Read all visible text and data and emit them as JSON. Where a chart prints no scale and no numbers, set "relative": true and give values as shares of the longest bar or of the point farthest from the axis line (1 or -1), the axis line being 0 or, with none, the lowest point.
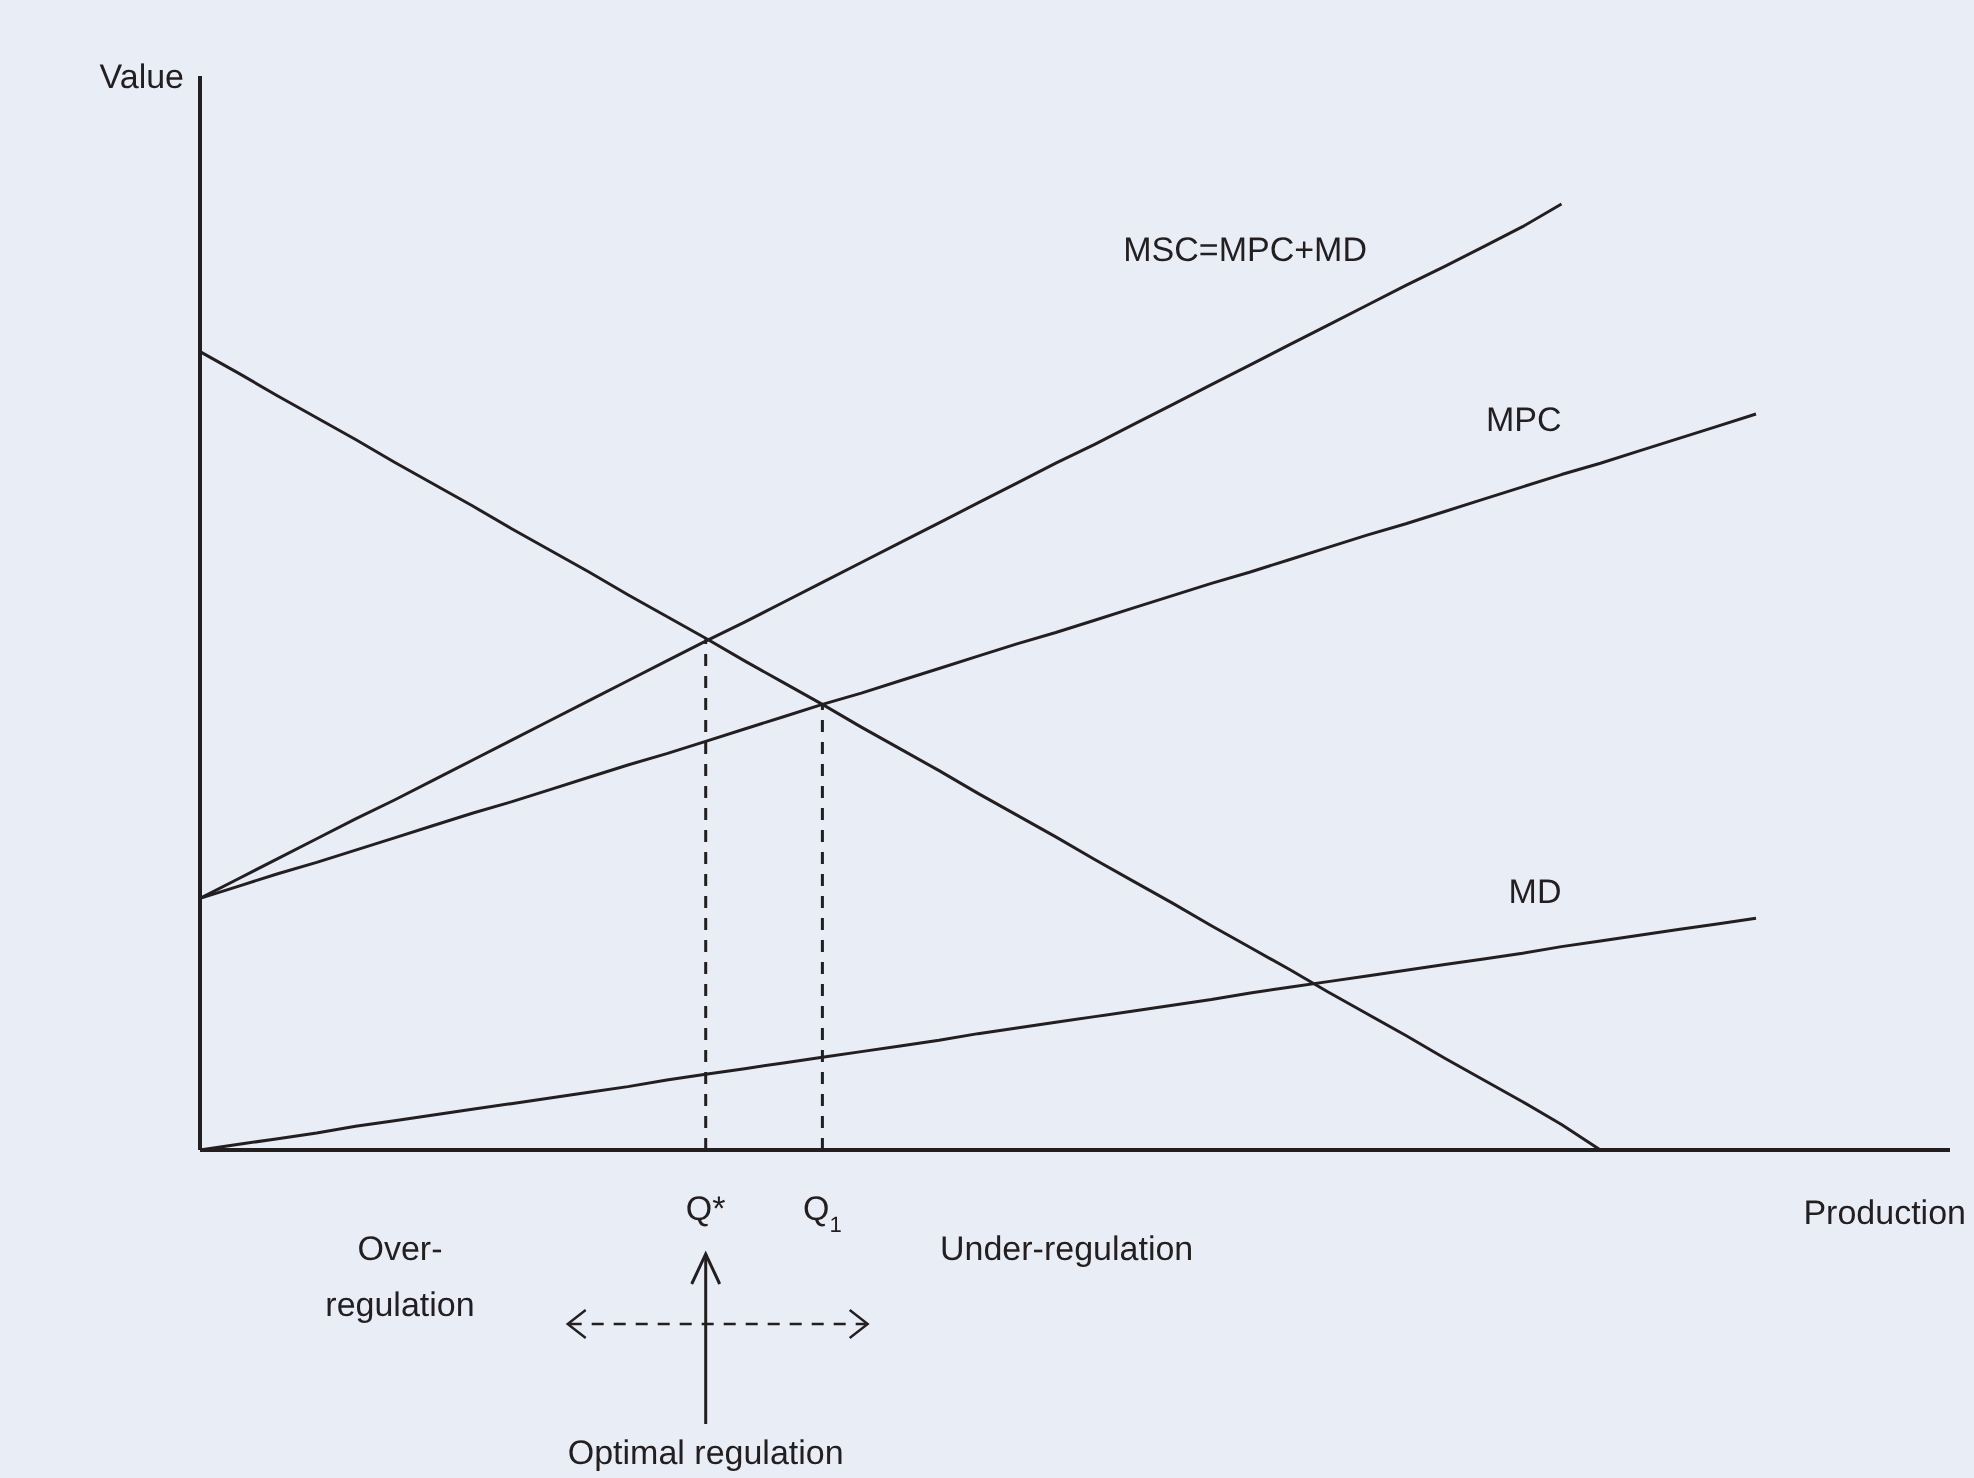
{
  "chart_data": {
    "type": "line",
    "relative": true,
    "xlabel": "Production",
    "ylabel": "Value",
    "categories": [
      null,
      null,
      null,
      null,
      null,
      null,
      null,
      null,
      null,
      null,
      null,
      null,
      null,
      "Q*",
      null,
      null,
      "Q$_{1}$",
      null,
      null,
      null,
      null,
      null,
      null,
      null,
      null,
      null,
      null,
      null,
      null,
      null,
      null,
      null,
      null,
      null,
      null,
      null,
      null,
      null,
      null,
      null,
      null
    ],
    "series": [
      {
        "color": "#231f20",
        "values": [
          0.844,
          0.821,
          0.797,
          0.774,
          0.751,
          0.727,
          0.704,
          0.681,
          0.657,
          0.634,
          0.611,
          0.587,
          0.564,
          0.541,
          0.517,
          0.494,
          0.471,
          0.447,
          0.424,
          0.401,
          0.377,
          0.354,
          0.331,
          0.307,
          0.284,
          0.261,
          0.237,
          0.214,
          0.191,
          0.167,
          0.144,
          0.121,
          0.097,
          0.074,
          0.051,
          0.027,
          0,
          null,
          null,
          null,
          null
        ]
      },
      {
        "name": "MSC=MPC+MD",
        "color": "#231f20",
        "values": [
          0.266,
          0.287,
          0.308,
          0.329,
          0.35,
          0.37,
          0.391,
          0.412,
          0.433,
          0.454,
          0.475,
          0.496,
          0.517,
          0.538,
          0.558,
          0.579,
          0.6,
          0.621,
          0.642,
          0.663,
          0.684,
          0.705,
          0.726,
          0.746,
          0.767,
          0.788,
          0.809,
          0.83,
          0.851,
          0.872,
          0.893,
          0.914,
          0.934,
          0.955,
          0.976,
          1,
          null,
          null,
          null,
          null,
          null
        ]
      },
      {
        "name": "MPC",
        "color": "#231f20",
        "values": [
          0.266,
          0.279,
          0.292,
          0.304,
          0.317,
          0.33,
          0.343,
          0.356,
          0.368,
          0.381,
          0.394,
          0.407,
          0.419,
          0.432,
          0.445,
          0.458,
          0.471,
          0.483,
          0.496,
          0.509,
          0.522,
          0.535,
          0.547,
          0.56,
          0.573,
          0.586,
          0.599,
          0.611,
          0.624,
          0.637,
          0.65,
          0.662,
          0.675,
          0.688,
          0.701,
          0.714,
          0.726,
          0.739,
          0.752,
          0.765,
          0.778
        ]
      },
      {
        "name": "MD",
        "color": "#231f20",
        "values": [
          0,
          0.006,
          0.012,
          0.018,
          0.025,
          0.031,
          0.037,
          0.043,
          0.049,
          0.055,
          0.061,
          0.067,
          0.074,
          0.08,
          0.086,
          0.092,
          0.098,
          0.104,
          0.11,
          0.116,
          0.123,
          0.129,
          0.135,
          0.141,
          0.147,
          0.153,
          0.159,
          0.166,
          0.172,
          0.178,
          0.184,
          0.19,
          0.196,
          0.202,
          0.208,
          0.215,
          0.221,
          0.227,
          0.233,
          0.239,
          0.245
        ]
      },
      {
        "color": "#231f20",
        "line_style": "dashed",
        "x": [
          "Q*",
          "Q*"
        ],
        "values": [
          0,
          0.54
        ]
      },
      {
        "color": "#231f20",
        "line_style": "dashed",
        "x": [
          "Q$_{1}$",
          "Q$_{1}$"
        ],
        "values": [
          0,
          0.471
        ]
      }
    ],
    "annotations": [
      "Over-\nregulation",
      "Under-regulation",
      "Optimal regulation"
    ],
    "marker": "none",
    "line_style": "solid",
    "legend": false
  }
}
